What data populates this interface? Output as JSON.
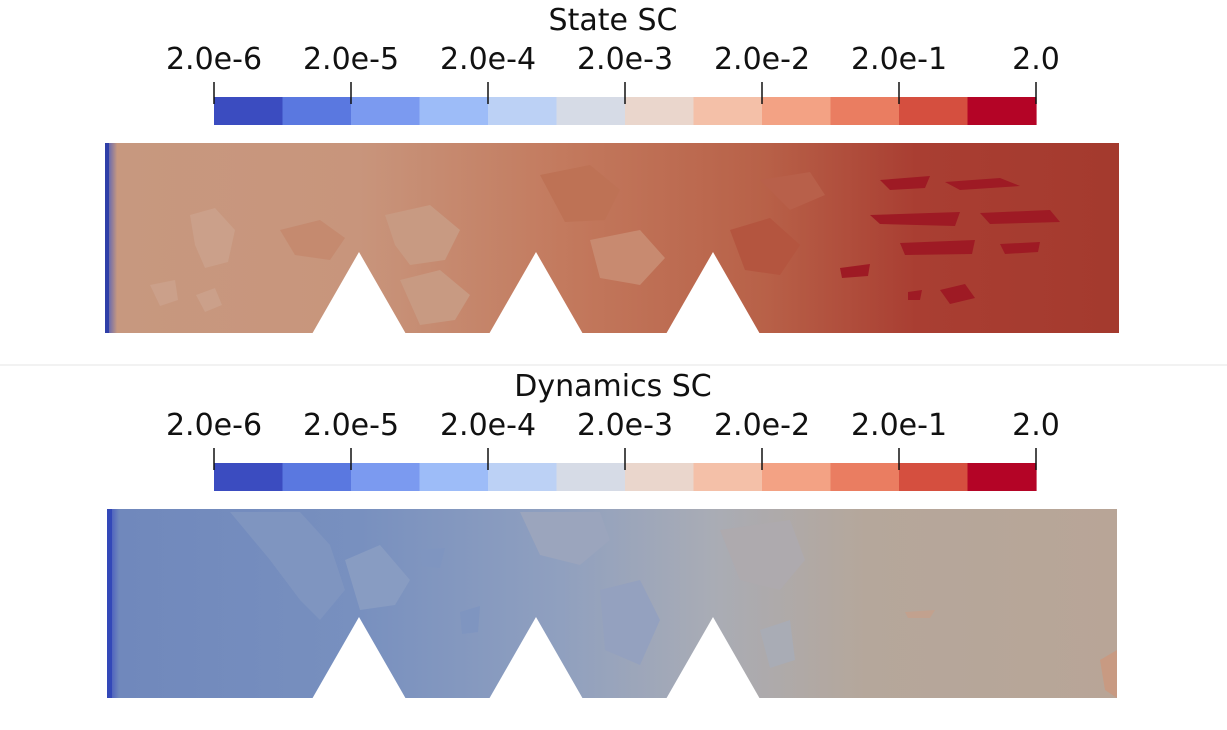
{
  "panels": [
    {
      "title": "State SC",
      "tick_labels": [
        "2.0e-6",
        "2.0e-5",
        "2.0e-4",
        "2.0e-3",
        "2.0e-2",
        "2.0e-1",
        "2.0"
      ],
      "colorbar": [
        "#3b4cc0",
        "#5a78e0",
        "#7b9af0",
        "#9dbcf8",
        "#bcd1f5",
        "#d6dbe6",
        "#ead6cc",
        "#f4c0a8",
        "#f3a284",
        "#ea7d61",
        "#d54f3f",
        "#b40426"
      ]
    },
    {
      "title": "Dynamics SC",
      "tick_labels": [
        "2.0e-6",
        "2.0e-5",
        "2.0e-4",
        "2.0e-3",
        "2.0e-2",
        "2.0e-1",
        "2.0"
      ],
      "colorbar": [
        "#3b4cc0",
        "#5a78e0",
        "#7b9af0",
        "#9dbcf8",
        "#bcd1f5",
        "#d6dbe6",
        "#ead6cc",
        "#f4c0a8",
        "#f3a284",
        "#ea7d61",
        "#d54f3f",
        "#b40426"
      ]
    }
  ]
}
